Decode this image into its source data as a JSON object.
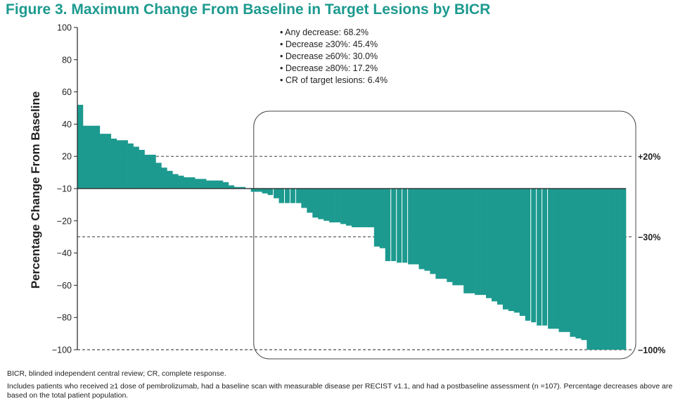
{
  "title": "Figure 3. Maximum Change From Baseline in Target Lesions by BICR",
  "colors": {
    "bar": "#1d9a8f",
    "title": "#1d9a8f"
  },
  "footnotes": {
    "line1": "BICR, blinded independent central review; CR, complete response.",
    "line2": "Includes patients who received ≥1 dose of pembrolizumab, had a baseline scan with measurable disease per RECIST v1.1, and had a postbaseline assessment (n =107). Percentage decreases above are based on the total patient population."
  },
  "chart_data": {
    "type": "bar",
    "title": "Figure 3. Maximum Change From Baseline in Target Lesions by BICR",
    "ylabel": "Percentage Change From Baseline",
    "xlabel": "",
    "ylim": [
      -100,
      100
    ],
    "yticks": [
      100,
      80,
      60,
      40,
      20,
      -10,
      -20,
      -40,
      -60,
      -80,
      -100
    ],
    "ytick_labels": [
      "100",
      "80",
      "60",
      "40",
      "20",
      "−10",
      "−20",
      "−40",
      "−60",
      "−80",
      "−100"
    ],
    "baseline": 0,
    "reference_lines": [
      {
        "value": 20,
        "label": "+20%"
      },
      {
        "value": -30,
        "label": "−30%"
      },
      {
        "value": -100,
        "label": "−100%"
      }
    ],
    "annotation": [
      "• Any decrease: 68.2%",
      "• Decrease ≥30%: 45.4%",
      "• Decrease ≥60%: 30.0%",
      "• Decrease ≥80%: 17.2%",
      "• CR of target lesions: 6.4%"
    ],
    "values": [
      52,
      39,
      39,
      39,
      34,
      34,
      31,
      30,
      30,
      28,
      26,
      24,
      21,
      21,
      16,
      13,
      11,
      9,
      8,
      7,
      7,
      6,
      6,
      5,
      5,
      5,
      4,
      2,
      1,
      1,
      0,
      -2,
      -2,
      -3,
      -4,
      -6,
      -9,
      -9,
      -9,
      -9,
      -12,
      -15,
      -18,
      -19,
      -20,
      -21,
      -21,
      -22,
      -23,
      -24,
      -24,
      -24,
      -24,
      -36,
      -37,
      -45,
      -45,
      -46,
      -46,
      -47,
      -47,
      -50,
      -51,
      -53,
      -56,
      -56,
      -58,
      -60,
      -60,
      -65,
      -65,
      -66,
      -66,
      -68,
      -70,
      -72,
      -75,
      -76,
      -77,
      -79,
      -82,
      -83,
      -85,
      -85,
      -87,
      -87,
      -89,
      -89,
      -92,
      -93,
      -94,
      -100,
      -100,
      -100,
      -100,
      -100,
      -100,
      -100
    ],
    "white_lines_after_index": [
      34,
      36,
      37,
      38,
      55,
      56,
      57,
      58,
      80,
      81,
      82,
      83
    ],
    "rounded_box": {
      "from_index": 30,
      "to_index": 97
    }
  }
}
